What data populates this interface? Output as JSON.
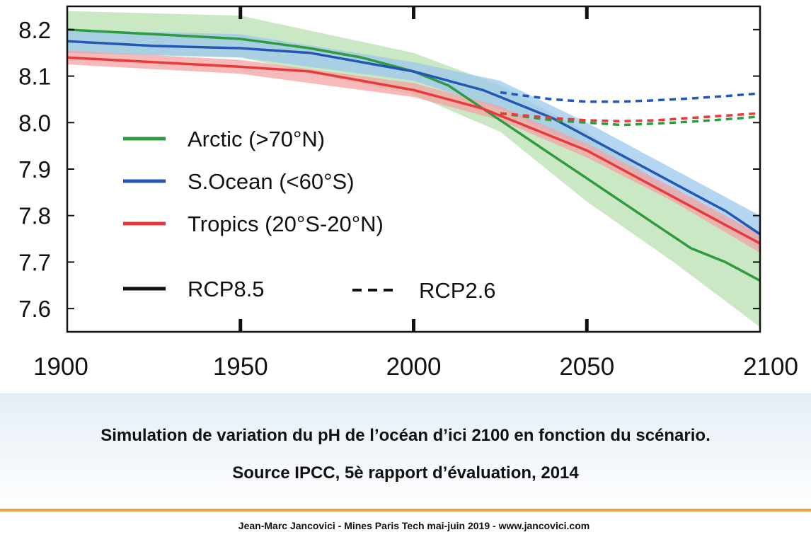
{
  "chart_data": {
    "type": "line",
    "title": "",
    "xlabel": "",
    "ylabel": "",
    "xlim": [
      1900,
      2100
    ],
    "ylim": [
      7.55,
      8.25
    ],
    "x_ticks": [
      1900,
      1950,
      2000,
      2050,
      2100
    ],
    "y_ticks": [
      7.6,
      7.7,
      7.8,
      7.9,
      8.0,
      8.1,
      8.2
    ],
    "grid": false,
    "legend_placement": "left",
    "legend": [
      {
        "label": "Arctic (>70°N)",
        "color": "#2e9b3f",
        "style": "solid"
      },
      {
        "label": "S.Ocean (<60°S)",
        "color": "#2457b5",
        "style": "solid"
      },
      {
        "label": "Tropics (20°S-20°N)",
        "color": "#e83a3a",
        "style": "solid"
      }
    ],
    "scenario_legend": [
      {
        "label": "RCP8.5",
        "style": "solid"
      },
      {
        "label": "RCP2.6",
        "style": "dashed"
      }
    ],
    "series": [
      {
        "name": "Arctic (>70°N)",
        "scenario": "RCP8.5",
        "color": "#2e9b3f",
        "x": [
          1900,
          1925,
          1950,
          1970,
          1985,
          2000,
          2010,
          2020,
          2030,
          2040,
          2050,
          2060,
          2070,
          2080,
          2090,
          2100
        ],
        "y": [
          8.2,
          8.19,
          8.18,
          8.16,
          8.14,
          8.11,
          8.08,
          8.03,
          7.98,
          7.93,
          7.88,
          7.83,
          7.78,
          7.73,
          7.7,
          7.66
        ]
      },
      {
        "name": "S.Ocean (<60°S)",
        "scenario": "RCP8.5",
        "color": "#2457b5",
        "x": [
          1900,
          1925,
          1950,
          1970,
          1985,
          2000,
          2010,
          2020,
          2030,
          2040,
          2050,
          2060,
          2070,
          2080,
          2090,
          2100
        ],
        "y": [
          8.175,
          8.165,
          8.16,
          8.15,
          8.13,
          8.11,
          8.09,
          8.07,
          8.04,
          8.01,
          7.97,
          7.93,
          7.89,
          7.85,
          7.81,
          7.76
        ]
      },
      {
        "name": "Tropics (20°S-20°N)",
        "scenario": "RCP8.5",
        "color": "#e83a3a",
        "x": [
          1900,
          1925,
          1950,
          1970,
          1985,
          2000,
          2010,
          2020,
          2030,
          2040,
          2050,
          2060,
          2070,
          2080,
          2090,
          2100
        ],
        "y": [
          8.14,
          8.13,
          8.12,
          8.11,
          8.09,
          8.07,
          8.05,
          8.03,
          8.0,
          7.97,
          7.94,
          7.9,
          7.86,
          7.82,
          7.78,
          7.74
        ]
      },
      {
        "name": "Arctic (>70°N)",
        "scenario": "RCP2.6",
        "color": "#2e9b3f",
        "x": [
          2025,
          2040,
          2050,
          2060,
          2070,
          2080,
          2090,
          2100
        ],
        "y": [
          8.02,
          8.005,
          8.0,
          7.995,
          7.998,
          8.002,
          8.007,
          8.013
        ]
      },
      {
        "name": "S.Ocean (<60°S)",
        "scenario": "RCP2.6",
        "color": "#2457b5",
        "x": [
          2025,
          2040,
          2050,
          2060,
          2070,
          2080,
          2090,
          2100
        ],
        "y": [
          8.065,
          8.05,
          8.045,
          8.045,
          8.048,
          8.052,
          8.057,
          8.063
        ]
      },
      {
        "name": "Tropics (20°S-20°N)",
        "scenario": "RCP2.6",
        "color": "#e83a3a",
        "x": [
          2025,
          2040,
          2050,
          2060,
          2070,
          2080,
          2090,
          2100
        ],
        "y": [
          8.02,
          8.01,
          8.005,
          8.003,
          8.005,
          8.01,
          8.015,
          8.02
        ]
      }
    ],
    "uncertainty_bands": [
      {
        "name": "Arctic (>70°N)",
        "color": "#b9e0b0",
        "x": [
          1900,
          1950,
          2000,
          2025,
          2050,
          2075,
          2100
        ],
        "low": [
          8.15,
          8.14,
          8.06,
          7.98,
          7.83,
          7.7,
          7.56
        ],
        "high": [
          8.24,
          8.23,
          8.15,
          8.08,
          7.98,
          7.85,
          7.76
        ]
      },
      {
        "name": "S.Ocean (<60°S)",
        "color": "#9cc8ec",
        "x": [
          1900,
          1950,
          2000,
          2025,
          2050,
          2075,
          2100
        ],
        "low": [
          8.15,
          8.14,
          8.09,
          8.03,
          7.94,
          7.84,
          7.73
        ],
        "high": [
          8.2,
          8.19,
          8.13,
          8.09,
          8.0,
          7.9,
          7.8
        ]
      },
      {
        "name": "Tropics (20°S-20°N)",
        "color": "#f3a3a3",
        "x": [
          1900,
          1950,
          2000,
          2025,
          2050,
          2075,
          2100
        ],
        "low": [
          8.125,
          8.105,
          8.055,
          8.005,
          7.925,
          7.83,
          7.72
        ],
        "high": [
          8.155,
          8.135,
          8.085,
          8.035,
          7.955,
          7.86,
          7.76
        ]
      }
    ]
  },
  "caption": {
    "line1": "Simulation de variation du pH de l’océan d’ici 2100 en fonction du scénario.",
    "line2": "Source IPCC, 5è rapport d’évaluation, 2014"
  },
  "footer": {
    "text": "Jean-Marc Jancovici - Mines Paris Tech mai-juin 2019 - www.jancovici.com"
  }
}
